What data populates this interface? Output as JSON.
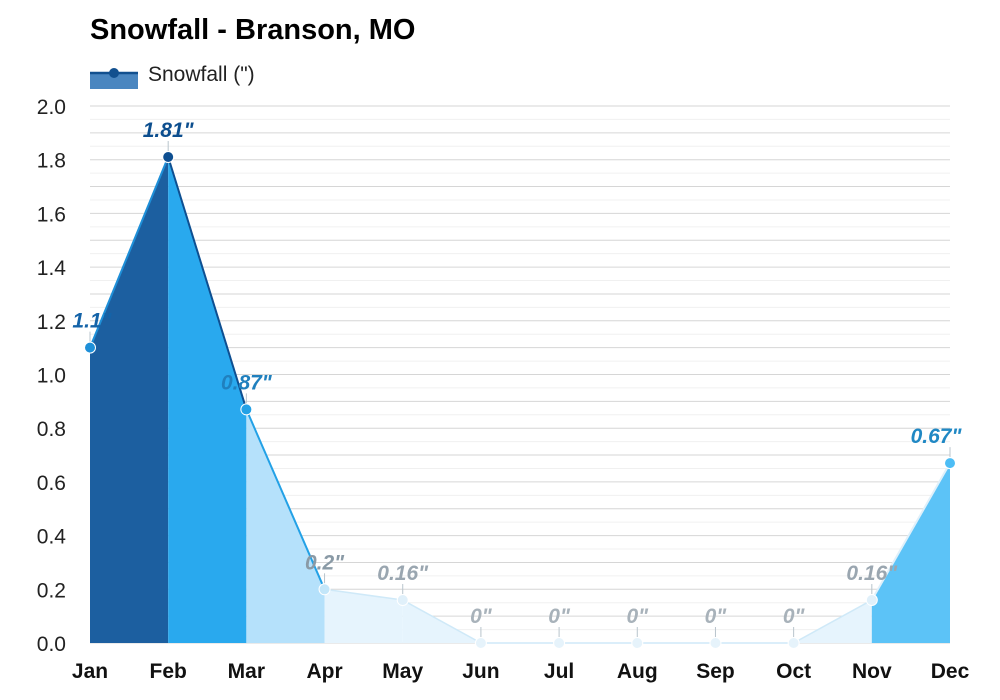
{
  "title": "Snowfall - Branson, MO",
  "legend": {
    "label": "Snowfall (\")",
    "color": "#1f6fb0"
  },
  "chart_data": {
    "type": "area",
    "title": "Snowfall - Branson, MO",
    "xlabel": "",
    "ylabel": "",
    "unit": "\"",
    "ylim": [
      0,
      2.0
    ],
    "yticks": [
      "0.0",
      "0.2",
      "0.4",
      "0.6",
      "0.8",
      "1.0",
      "1.2",
      "1.4",
      "1.6",
      "1.8",
      "2.0"
    ],
    "grid": true,
    "legend_position": "top-left",
    "categories": [
      "Jan",
      "Feb",
      "Mar",
      "Apr",
      "May",
      "Jun",
      "Jul",
      "Aug",
      "Sep",
      "Oct",
      "Nov",
      "Dec"
    ],
    "series": [
      {
        "name": "Snowfall (\")",
        "values": [
          1.1,
          1.81,
          0.87,
          0.2,
          0.16,
          0,
          0,
          0,
          0,
          0,
          0.16,
          0.67
        ],
        "labels": [
          "1.1\"",
          "1.81\"",
          "0.87\"",
          "0.2\"",
          "0.16\"",
          "0\"",
          "0\"",
          "0\"",
          "0\"",
          "0\"",
          "0.16\"",
          "0.67\""
        ]
      }
    ],
    "segment_colors": [
      "#1c5fa0",
      "#29a9ee",
      "#b5e1fb",
      "#e6f4fd",
      "#e6f4fd",
      "#eef7fd",
      "#eef7fd",
      "#eef7fd",
      "#eef7fd",
      "#e6f4fd",
      "#5cc3f7",
      "#5cc3f7"
    ],
    "point_colors": [
      "#1e8fd8",
      "#0e4f91",
      "#23a1e6",
      "#c3e6f9",
      "#e0f0fa",
      "#e6f3fb",
      "#e6f3fb",
      "#e6f3fb",
      "#e6f3fb",
      "#e6f3fb",
      "#e0f0fa",
      "#4dbdf5"
    ],
    "label_colors": [
      "#1463a8",
      "#0c4e8e",
      "#2080be",
      "#8a9aa6",
      "#9aa6b0",
      "#a8b2ba",
      "#a8b2ba",
      "#a8b2ba",
      "#a8b2ba",
      "#a8b2ba",
      "#9aa6b0",
      "#2088c4"
    ]
  }
}
